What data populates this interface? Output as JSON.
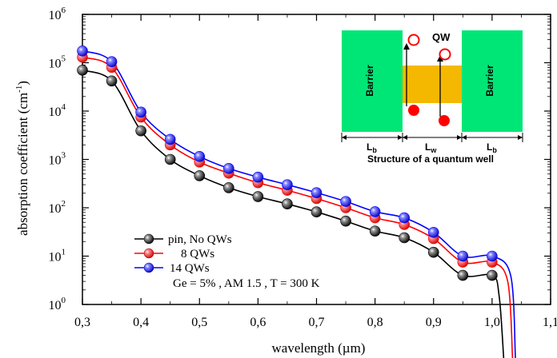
{
  "chart_data": {
    "type": "line",
    "xlabel": "wavelength (µm)",
    "ylabel": "absorption coefficient (cm",
    "ylabel_sup": "-1",
    "ylabel_close": ")",
    "yscale": "log",
    "xlim": [
      0.3,
      1.1
    ],
    "ylim": [
      1,
      1000000
    ],
    "x_ticks": [
      "0,3",
      "0,4",
      "0,5",
      "0,6",
      "0,7",
      "0,8",
      "0,9",
      "1,0",
      "1,1"
    ],
    "y_tick_exponents": [
      "0",
      "1",
      "2",
      "3",
      "4",
      "5",
      "6"
    ],
    "x": [
      0.3,
      0.35,
      0.4,
      0.45,
      0.5,
      0.55,
      0.6,
      0.65,
      0.7,
      0.75,
      0.8,
      0.85,
      0.9,
      0.95,
      1.0
    ],
    "series": [
      {
        "name": "pin, No QWs",
        "color": "#000000",
        "values": [
          70000,
          42000,
          3900,
          1000,
          460,
          260,
          170,
          120,
          82,
          53,
          33,
          24,
          12,
          4.0,
          4.0
        ]
      },
      {
        "name": "8 QWs",
        "color": "#ff0000",
        "values": [
          130000,
          80000,
          7500,
          2000,
          880,
          520,
          330,
          230,
          155,
          100,
          62,
          45,
          23,
          7.5,
          7.5
        ]
      },
      {
        "name": "14 QWs",
        "color": "#0000ff",
        "values": [
          175000,
          105000,
          9500,
          2600,
          1150,
          650,
          430,
          300,
          205,
          135,
          83,
          62,
          31,
          10,
          10
        ]
      }
    ],
    "legend_placement": "bottom-left",
    "annotation": "Ge = 5% , AM 1.5 , T = 300 K",
    "inset": {
      "qw_label": "QW",
      "barrier_left": "Barrier",
      "barrier_right": "Barrier",
      "lb_left": "L",
      "lb_left_sub": "b",
      "lw": "L",
      "lw_sub": "w",
      "lb_right": "L",
      "lb_right_sub": "b",
      "caption": "Structure of a quantum well",
      "barrier_color": "#00e676",
      "well_color": "#f5b800"
    }
  }
}
